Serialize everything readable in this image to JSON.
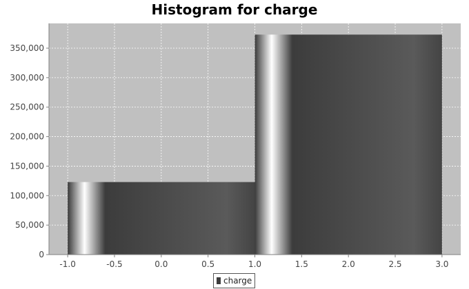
{
  "title": "Histogram for charge",
  "colors": {
    "plot_background": "#c0c0c0",
    "grid": "#ffffff",
    "bar_dark": "#3c3c3c",
    "bar_mid": "#555555",
    "bar_highlight": "#ffffff"
  },
  "chart_data": {
    "type": "bar",
    "title": "Histogram for charge",
    "xlabel": "",
    "ylabel": "",
    "xlim": [
      -1.2,
      3.2
    ],
    "ylim": [
      0,
      392000
    ],
    "grid": true,
    "legend_position": "bottom",
    "x_ticks": [
      "-1.0",
      "-0.5",
      "0.0",
      "0.5",
      "1.0",
      "1.5",
      "2.0",
      "2.5",
      "3.0"
    ],
    "x_tick_values": [
      -1.0,
      -0.5,
      0.0,
      0.5,
      1.0,
      1.5,
      2.0,
      2.5,
      3.0
    ],
    "y_ticks": [
      "0",
      "50,000",
      "100,000",
      "150,000",
      "200,000",
      "250,000",
      "300,000",
      "350,000"
    ],
    "y_tick_values": [
      0,
      50000,
      100000,
      150000,
      200000,
      250000,
      300000,
      350000
    ],
    "series": [
      {
        "name": "charge",
        "bins": [
          {
            "start": -1.0,
            "end": 1.0,
            "value": 123000
          },
          {
            "start": 1.0,
            "end": 3.0,
            "value": 373000
          }
        ]
      }
    ]
  }
}
